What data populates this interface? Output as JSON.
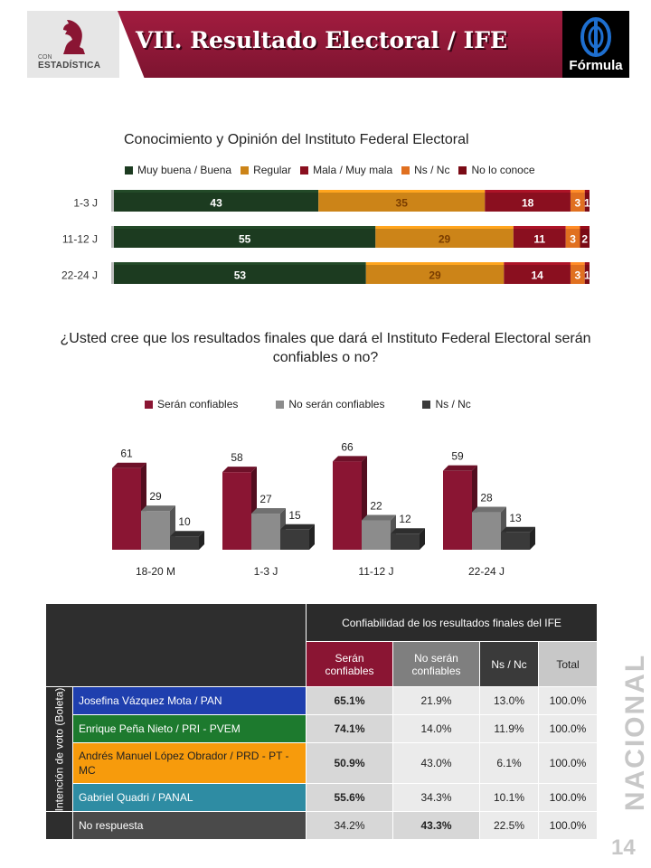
{
  "header": {
    "title": "VII. Resultado Electoral / IFE",
    "left_logo_small": "CON",
    "left_logo_big": "ESTADÍSTICA",
    "right_logo": "Fórmula",
    "side_label": "NACIONAL",
    "page_number": "14"
  },
  "colors": {
    "brand_red": "#8a1533",
    "muy_buena": "#1c3b20",
    "regular": "#cc8418",
    "mala": "#8a0f1f",
    "ns_nc_orange": "#e07020",
    "no_lo_conoce": "#7a0a15",
    "no_confiables": "#8c8c8c",
    "ns_nc_dark": "#3a3a3a"
  },
  "chart_data": [
    {
      "type": "bar",
      "orientation": "horizontal",
      "stacked": true,
      "title": "Conocimiento y Opinión del Instituto Federal Electoral",
      "categories": [
        "1-3 J",
        "11-12 J",
        "22-24 J"
      ],
      "series": [
        {
          "name": "Muy buena / Buena",
          "values": [
            43,
            55,
            53
          ]
        },
        {
          "name": "Regular",
          "values": [
            35,
            29,
            29
          ]
        },
        {
          "name": "Mala / Muy mala",
          "values": [
            18,
            11,
            14
          ]
        },
        {
          "name": "Ns / Nc",
          "values": [
            3,
            3,
            3
          ]
        },
        {
          "name": "No lo conoce",
          "values": [
            1,
            2,
            1
          ]
        }
      ],
      "legend": "top",
      "xlim": [
        0,
        100
      ]
    },
    {
      "type": "bar",
      "orientation": "vertical",
      "title": "¿Usted cree que los resultados finales que dará el Instituto Federal Electoral serán confiables o no?",
      "categories": [
        "18-20 M",
        "1-3 J",
        "11-12 J",
        "22-24 J"
      ],
      "series": [
        {
          "name": "Serán confiables",
          "values": [
            61,
            58,
            66,
            59
          ]
        },
        {
          "name": "No serán confiables",
          "values": [
            29,
            27,
            22,
            28
          ]
        },
        {
          "name": "Ns / Nc",
          "values": [
            10,
            15,
            12,
            13
          ]
        }
      ],
      "legend": "top",
      "ylim": [
        0,
        70
      ]
    },
    {
      "type": "table",
      "title": "Confiabilidad de los resultados finales del IFE",
      "row_group_label": "Intención de voto (Boleta)",
      "columns": [
        "Serán confiables",
        "No serán confiables",
        "Ns / Nc",
        "Total"
      ],
      "rows": [
        {
          "label": "Josefina Vázquez Mota / PAN",
          "color": "#1f3fae",
          "values": [
            "65.1%",
            "21.9%",
            "13.0%",
            "100.0%"
          ]
        },
        {
          "label": "Enrique Peña Nieto / PRI - PVEM",
          "color": "#1d7a2e",
          "values": [
            "74.1%",
            "14.0%",
            "11.9%",
            "100.0%"
          ]
        },
        {
          "label": "Andrés Manuel López Obrador / PRD - PT - MC",
          "color": "#f79b0c",
          "values": [
            "50.9%",
            "43.0%",
            "6.1%",
            "100.0%"
          ]
        },
        {
          "label": "Gabriel Quadri / PANAL",
          "color": "#2e8ca3",
          "values": [
            "55.6%",
            "34.3%",
            "10.1%",
            "100.0%"
          ]
        },
        {
          "label": "No respuesta",
          "color": "#4a4a4a",
          "values": [
            "34.2%",
            "43.3%",
            "22.5%",
            "100.0%"
          ]
        }
      ]
    }
  ]
}
